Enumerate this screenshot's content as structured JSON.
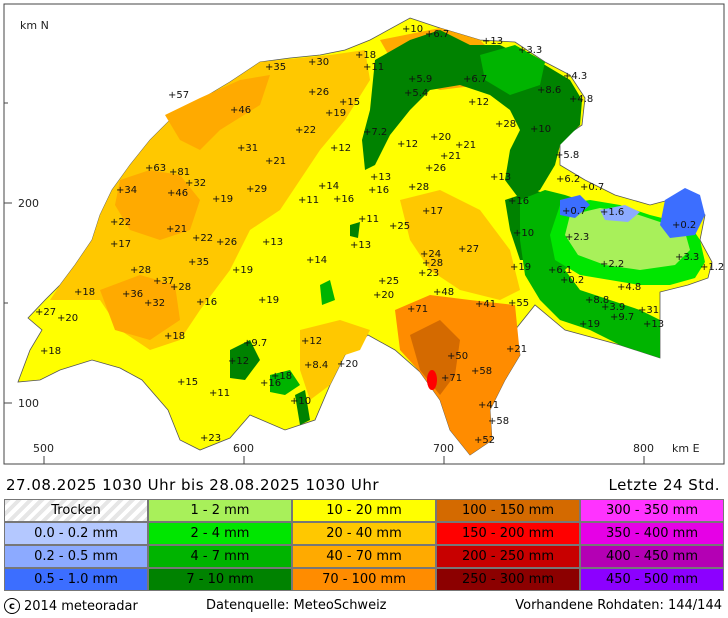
{
  "map": {
    "axis_y_label": "km N",
    "axis_x_label": "km E",
    "y_ticks": [
      "200",
      "100"
    ],
    "x_ticks": [
      "500",
      "600",
      "700",
      "800"
    ],
    "stations": [
      {
        "v": "10",
        "x": 402,
        "y": 32
      },
      {
        "v": "6.7",
        "x": 425,
        "y": 37
      },
      {
        "v": "13",
        "x": 482,
        "y": 44
      },
      {
        "v": "3.3",
        "x": 518,
        "y": 53
      },
      {
        "v": "18",
        "x": 355,
        "y": 58
      },
      {
        "v": "11",
        "x": 363,
        "y": 70
      },
      {
        "v": "35",
        "x": 265,
        "y": 70
      },
      {
        "v": "30",
        "x": 308,
        "y": 65
      },
      {
        "v": "4.3",
        "x": 563,
        "y": 79
      },
      {
        "v": "5.9",
        "x": 408,
        "y": 82
      },
      {
        "v": "6.7",
        "x": 463,
        "y": 82
      },
      {
        "v": "5.4",
        "x": 404,
        "y": 96
      },
      {
        "v": "8.6",
        "x": 537,
        "y": 93
      },
      {
        "v": "4.8",
        "x": 569,
        "y": 102
      },
      {
        "v": "57",
        "x": 168,
        "y": 98
      },
      {
        "v": "26",
        "x": 308,
        "y": 95
      },
      {
        "v": "15",
        "x": 339,
        "y": 105
      },
      {
        "v": "12",
        "x": 468,
        "y": 105
      },
      {
        "v": "46",
        "x": 230,
        "y": 113
      },
      {
        "v": "19",
        "x": 325,
        "y": 116
      },
      {
        "v": "28",
        "x": 495,
        "y": 127
      },
      {
        "v": "10",
        "x": 530,
        "y": 132
      },
      {
        "v": "22",
        "x": 295,
        "y": 133
      },
      {
        "v": "7.2",
        "x": 363,
        "y": 135
      },
      {
        "v": "20",
        "x": 430,
        "y": 140
      },
      {
        "v": "12",
        "x": 330,
        "y": 151
      },
      {
        "v": "12",
        "x": 397,
        "y": 147
      },
      {
        "v": "21",
        "x": 455,
        "y": 148
      },
      {
        "v": "21",
        "x": 440,
        "y": 159
      },
      {
        "v": "5.8",
        "x": 555,
        "y": 158
      },
      {
        "v": "31",
        "x": 237,
        "y": 151
      },
      {
        "v": "21",
        "x": 265,
        "y": 164
      },
      {
        "v": "63",
        "x": 145,
        "y": 171
      },
      {
        "v": "81",
        "x": 169,
        "y": 175
      },
      {
        "v": "26",
        "x": 425,
        "y": 171
      },
      {
        "v": "13",
        "x": 490,
        "y": 180
      },
      {
        "v": "32",
        "x": 185,
        "y": 186
      },
      {
        "v": "6.2",
        "x": 556,
        "y": 182
      },
      {
        "v": "34",
        "x": 116,
        "y": 193
      },
      {
        "v": "46",
        "x": 167,
        "y": 196
      },
      {
        "v": "29",
        "x": 246,
        "y": 192
      },
      {
        "v": "14",
        "x": 318,
        "y": 189
      },
      {
        "v": "13",
        "x": 370,
        "y": 180
      },
      {
        "v": "16",
        "x": 368,
        "y": 193
      },
      {
        "v": "28",
        "x": 408,
        "y": 190
      },
      {
        "v": "0.7",
        "x": 580,
        "y": 190
      },
      {
        "v": "19",
        "x": 212,
        "y": 202
      },
      {
        "v": "11",
        "x": 298,
        "y": 203
      },
      {
        "v": "16",
        "x": 333,
        "y": 202
      },
      {
        "v": "16",
        "x": 508,
        "y": 204
      },
      {
        "v": "0.7",
        "x": 562,
        "y": 214
      },
      {
        "v": "1.6",
        "x": 600,
        "y": 215
      },
      {
        "v": "17",
        "x": 422,
        "y": 214
      },
      {
        "v": "22",
        "x": 110,
        "y": 225
      },
      {
        "v": "11",
        "x": 358,
        "y": 222
      },
      {
        "v": "25",
        "x": 389,
        "y": 229
      },
      {
        "v": "0.2",
        "x": 672,
        "y": 228
      },
      {
        "v": "21",
        "x": 166,
        "y": 232
      },
      {
        "v": "22",
        "x": 192,
        "y": 241
      },
      {
        "v": "10",
        "x": 513,
        "y": 236
      },
      {
        "v": "2.3",
        "x": 565,
        "y": 240
      },
      {
        "v": "17",
        "x": 110,
        "y": 247
      },
      {
        "v": "26",
        "x": 216,
        "y": 245
      },
      {
        "v": "13",
        "x": 262,
        "y": 245
      },
      {
        "v": "13",
        "x": 350,
        "y": 248
      },
      {
        "v": "27",
        "x": 458,
        "y": 252
      },
      {
        "v": "24",
        "x": 420,
        "y": 257
      },
      {
        "v": "28",
        "x": 422,
        "y": 266
      },
      {
        "v": "3.3",
        "x": 675,
        "y": 260
      },
      {
        "v": "1.2",
        "x": 700,
        "y": 270
      },
      {
        "v": "35",
        "x": 188,
        "y": 265
      },
      {
        "v": "14",
        "x": 306,
        "y": 263
      },
      {
        "v": "2.2",
        "x": 600,
        "y": 267
      },
      {
        "v": "28",
        "x": 130,
        "y": 273
      },
      {
        "v": "19",
        "x": 232,
        "y": 273
      },
      {
        "v": "23",
        "x": 418,
        "y": 276
      },
      {
        "v": "19",
        "x": 510,
        "y": 270
      },
      {
        "v": "6.1",
        "x": 548,
        "y": 273
      },
      {
        "v": "37",
        "x": 153,
        "y": 284
      },
      {
        "v": "25",
        "x": 378,
        "y": 284
      },
      {
        "v": "0.2",
        "x": 560,
        "y": 283
      },
      {
        "v": "28",
        "x": 170,
        "y": 290
      },
      {
        "v": "4.8",
        "x": 617,
        "y": 290
      },
      {
        "v": "18",
        "x": 74,
        "y": 295
      },
      {
        "v": "36",
        "x": 122,
        "y": 297
      },
      {
        "v": "20",
        "x": 373,
        "y": 298
      },
      {
        "v": "48",
        "x": 433,
        "y": 295
      },
      {
        "v": "32",
        "x": 144,
        "y": 306
      },
      {
        "v": "16",
        "x": 196,
        "y": 305
      },
      {
        "v": "19",
        "x": 258,
        "y": 303
      },
      {
        "v": "41",
        "x": 475,
        "y": 307
      },
      {
        "v": "55",
        "x": 508,
        "y": 306
      },
      {
        "v": "8.8",
        "x": 585,
        "y": 303
      },
      {
        "v": "3.9",
        "x": 601,
        "y": 310
      },
      {
        "v": "27",
        "x": 35,
        "y": 315
      },
      {
        "v": "71",
        "x": 407,
        "y": 312
      },
      {
        "v": "31",
        "x": 638,
        "y": 313
      },
      {
        "v": "20",
        "x": 57,
        "y": 321
      },
      {
        "v": "9.7",
        "x": 610,
        "y": 320
      },
      {
        "v": "19",
        "x": 579,
        "y": 327
      },
      {
        "v": "13",
        "x": 643,
        "y": 327
      },
      {
        "v": "18",
        "x": 164,
        "y": 339
      },
      {
        "v": "9.7",
        "x": 243,
        "y": 346
      },
      {
        "v": "12",
        "x": 301,
        "y": 344
      },
      {
        "v": "18",
        "x": 40,
        "y": 354
      },
      {
        "v": "21",
        "x": 506,
        "y": 352
      },
      {
        "v": "12",
        "x": 228,
        "y": 364
      },
      {
        "v": "50",
        "x": 447,
        "y": 359
      },
      {
        "v": "8.4",
        "x": 304,
        "y": 368
      },
      {
        "v": "20",
        "x": 337,
        "y": 367
      },
      {
        "v": "58",
        "x": 471,
        "y": 374
      },
      {
        "v": "71",
        "x": 441,
        "y": 381
      },
      {
        "v": "18",
        "x": 271,
        "y": 379
      },
      {
        "v": "16",
        "x": 260,
        "y": 386
      },
      {
        "v": "15",
        "x": 177,
        "y": 385
      },
      {
        "v": "11",
        "x": 209,
        "y": 396
      },
      {
        "v": "10",
        "x": 290,
        "y": 404
      },
      {
        "v": "41",
        "x": 478,
        "y": 408
      },
      {
        "v": "58",
        "x": 488,
        "y": 424
      },
      {
        "v": "23",
        "x": 200,
        "y": 441
      },
      {
        "v": "52",
        "x": 474,
        "y": 443
      }
    ]
  },
  "info": {
    "date_range": "27.08.2025  1030  Uhr   bis   28.08.2025  1030  Uhr",
    "period": "Letzte  24  Std."
  },
  "legend": [
    {
      "label": "Trocken",
      "color": "#e6e6e6"
    },
    {
      "label": "1 - 2 mm",
      "color": "#a8f05a"
    },
    {
      "label": "10 - 20 mm",
      "color": "#ffff00"
    },
    {
      "label": "100 - 150 mm",
      "color": "#d46a00"
    },
    {
      "label": "300 - 350 mm",
      "color": "#ff33ff"
    },
    {
      "label": "0.0 - 0.2 mm",
      "color": "#b4c8ff"
    },
    {
      "label": "2 - 4 mm",
      "color": "#00e600"
    },
    {
      "label": "20 - 40 mm",
      "color": "#ffc800"
    },
    {
      "label": "150 - 200 mm",
      "color": "#ff0000"
    },
    {
      "label": "350 - 400 mm",
      "color": "#e600e6"
    },
    {
      "label": "0.2 - 0.5 mm",
      "color": "#8caaff"
    },
    {
      "label": "4 - 7 mm",
      "color": "#00b400"
    },
    {
      "label": "40 - 70 mm",
      "color": "#ffaa00"
    },
    {
      "label": "200 - 250 mm",
      "color": "#c80000"
    },
    {
      "label": "400 - 450 mm",
      "color": "#b400b4"
    },
    {
      "label": "0.5 - 1.0 mm",
      "color": "#3c6eff"
    },
    {
      "label": "7 - 10 mm",
      "color": "#008200"
    },
    {
      "label": "70 - 100 mm",
      "color": "#ff8c00"
    },
    {
      "label": "250 - 300 mm",
      "color": "#8c0000"
    },
    {
      "label": "450 - 500 mm",
      "color": "#8c00ff"
    }
  ],
  "footer": {
    "copyright": "2014  meteoradar",
    "copyright_symbol": "c",
    "source": "Datenquelle: MeteoSchweiz",
    "raw": "Vorhandene Rohdaten: 144/144"
  }
}
